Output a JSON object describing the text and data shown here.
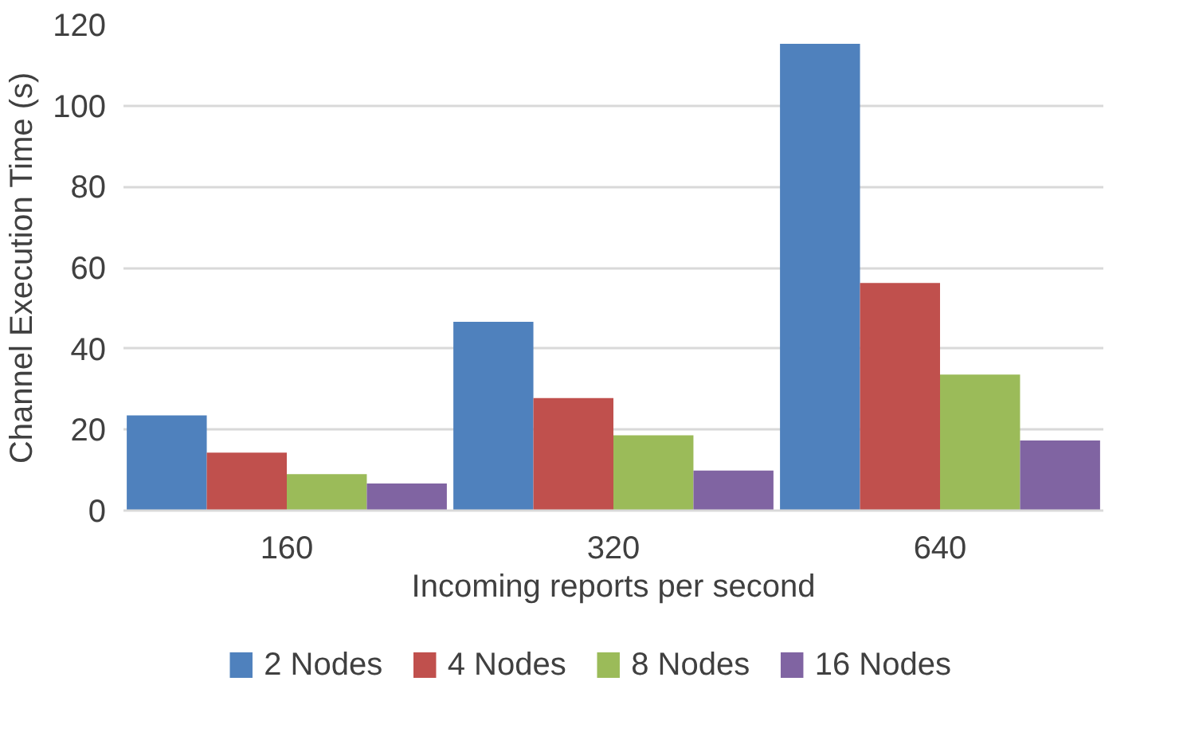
{
  "chart_data": {
    "type": "bar",
    "xlabel": "Incoming reports per second",
    "ylabel": "Channel Execution Time (s)",
    "categories": [
      "160",
      "320",
      "640"
    ],
    "series": [
      {
        "name": "2 Nodes",
        "color": "#4f81bd",
        "values": [
          23.5,
          46.6,
          115.3
        ]
      },
      {
        "name": "4 Nodes",
        "color": "#c0504d",
        "values": [
          14.3,
          27.8,
          56.2
        ]
      },
      {
        "name": "8 Nodes",
        "color": "#9bbb59",
        "values": [
          9.0,
          18.6,
          33.6
        ]
      },
      {
        "name": "16 Nodes",
        "color": "#8064a2",
        "values": [
          6.7,
          9.9,
          17.3
        ]
      }
    ],
    "ylim": [
      0,
      120
    ],
    "yticks": [
      0,
      20,
      40,
      60,
      80,
      100,
      120
    ],
    "grid": "y",
    "legend": "bottom"
  }
}
